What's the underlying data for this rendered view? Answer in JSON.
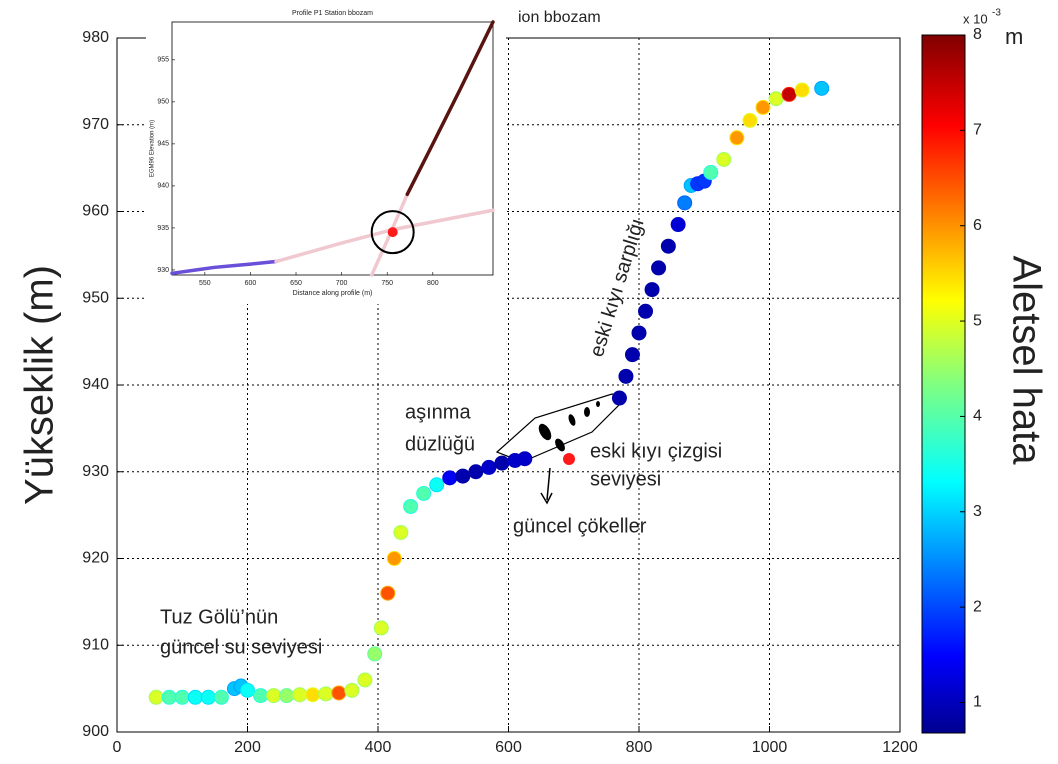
{
  "chart_data": [
    {
      "type": "scatter",
      "title": "ion bbozam",
      "ylabel": "Yükseklik (m)",
      "x": [
        60,
        80,
        100,
        120,
        140,
        160,
        180,
        190,
        200,
        220,
        240,
        260,
        280,
        300,
        320,
        340,
        360,
        380,
        395,
        405,
        415,
        425,
        435,
        450,
        470,
        490,
        510,
        530,
        550,
        570,
        590,
        610,
        625,
        770,
        780,
        790,
        800,
        810,
        820,
        830,
        845,
        860,
        870,
        880,
        890,
        900,
        910,
        930,
        950,
        970,
        990,
        1010,
        1030,
        1050,
        1080
      ],
      "values": [
        904,
        904,
        904,
        904,
        904,
        904,
        905,
        905.3,
        904.8,
        904.2,
        904.2,
        904.2,
        904.3,
        904.3,
        904.4,
        904.5,
        904.8,
        906,
        909,
        912,
        916,
        920,
        923,
        926,
        927.5,
        928.5,
        929.3,
        929.5,
        930,
        930.5,
        931,
        931.3,
        931.5,
        938.5,
        941,
        943.5,
        946,
        948.5,
        951,
        953.5,
        956,
        958.5,
        961,
        963,
        963.2,
        963.5,
        964.5,
        966,
        968.5,
        970.5,
        972,
        973,
        973.5,
        974,
        974.2
      ],
      "color_values": [
        5,
        4,
        4,
        3.5,
        3.5,
        4,
        3,
        3,
        3.5,
        4,
        5,
        4.5,
        5,
        5.5,
        5,
        6.5,
        5,
        5,
        4.5,
        5,
        6.5,
        6,
        5,
        4,
        4,
        3.5,
        1.5,
        1,
        1,
        1.2,
        1,
        1.2,
        1.2,
        1,
        1,
        1,
        1,
        1,
        1,
        1,
        1,
        1.3,
        2.5,
        3,
        2,
        2,
        4,
        5,
        6,
        5.5,
        6,
        5,
        7.5,
        5.5,
        3
      ],
      "colormap": "jet",
      "xlim": [
        0,
        1200
      ],
      "xticks": [
        0,
        200,
        400,
        600,
        800,
        1000,
        1200
      ],
      "ylim": [
        900,
        980
      ],
      "yticks": [
        900,
        910,
        920,
        930,
        940,
        950,
        960,
        970,
        980
      ],
      "grid": true,
      "colorbar": {
        "lim": [
          0.68,
          8
        ],
        "ticks": [
          1,
          2,
          3,
          4,
          5,
          6,
          7,
          8
        ],
        "multiplier": "x 10",
        "exponent": "-3",
        "unit": "m",
        "label": "Aletsel hata"
      },
      "annotations": [
        {
          "lines": [
            "Tuz Gölü’nün",
            "güncel su seviyesi"
          ]
        },
        {
          "lines": [
            "aşınma",
            "düzlüğü"
          ]
        },
        {
          "lines": [
            "eski kıyı sarplığı"
          ]
        },
        {
          "lines": [
            "eski kıyı çizgisi",
            "seviyesi"
          ]
        },
        {
          "lines": [
            "güncel çökeller"
          ]
        }
      ]
    },
    {
      "type": "line",
      "title": "Profile P1 Station bbozam",
      "xlabel": "Distance along profile (m)",
      "ylabel": "EGM96 Elevation (m)",
      "xlim": [
        514,
        866
      ],
      "xticks": [
        550,
        600,
        650,
        700,
        750,
        800
      ],
      "ylim": [
        929.4,
        959.5
      ],
      "yticks": [
        930,
        935,
        940,
        945,
        950,
        955
      ],
      "series": [
        {
          "color": "#6a4fd8",
          "x": [
            514,
            540,
            560,
            580,
            600,
            628
          ],
          "values": [
            929.6,
            930,
            930.3,
            930.5,
            930.7,
            931
          ]
        },
        {
          "color": "#f0c8d0",
          "x": [
            628,
            700,
            756,
            866
          ],
          "values": [
            931,
            933.2,
            934.8,
            937.1
          ]
        },
        {
          "color": "#f0c8d0",
          "x": [
            733,
            750,
            772
          ],
          "values": [
            929.4,
            933.5,
            939
          ]
        },
        {
          "color": "#5a1410",
          "x": [
            772,
            800,
            830,
            866
          ],
          "values": [
            939,
            945,
            951.5,
            959.5
          ]
        },
        {
          "color": "#ff1a1a",
          "x": [
            756
          ],
          "values": [
            934.5
          ]
        }
      ]
    }
  ]
}
